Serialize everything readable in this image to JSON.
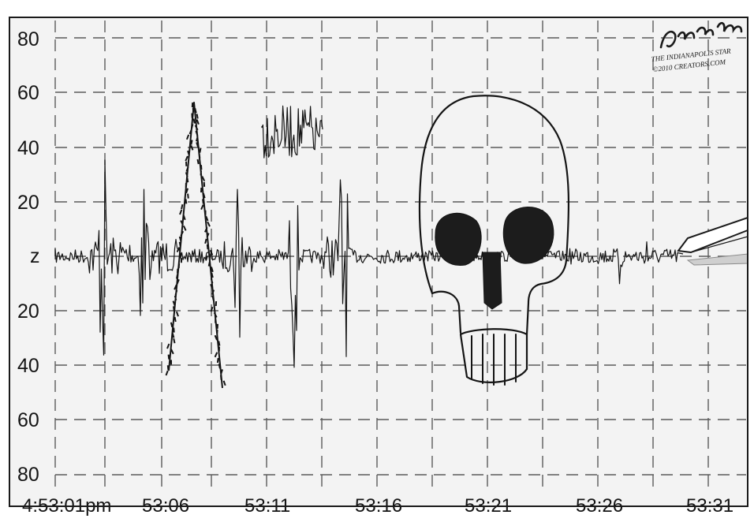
{
  "seismograph": {
    "y_labels": [
      "80",
      "60",
      "40",
      "20",
      "z",
      "20",
      "40",
      "60",
      "80"
    ],
    "x_labels": [
      "4:53:01pm",
      "53:06",
      "53:11",
      "53:16",
      "53:21",
      "53:26",
      "53:31"
    ],
    "trace_text": "HATE",
    "grid": "dashed",
    "colors": {
      "background": "#f3f3f3",
      "grid": "#5a5a5a",
      "ink": "#141414",
      "frame": "#1a1a1a"
    }
  },
  "signature": {
    "artist": "Gary Varvel",
    "line1": "THE INDIANAPOLIS STAR",
    "line2": "©2010 CREATORS.COM"
  }
}
